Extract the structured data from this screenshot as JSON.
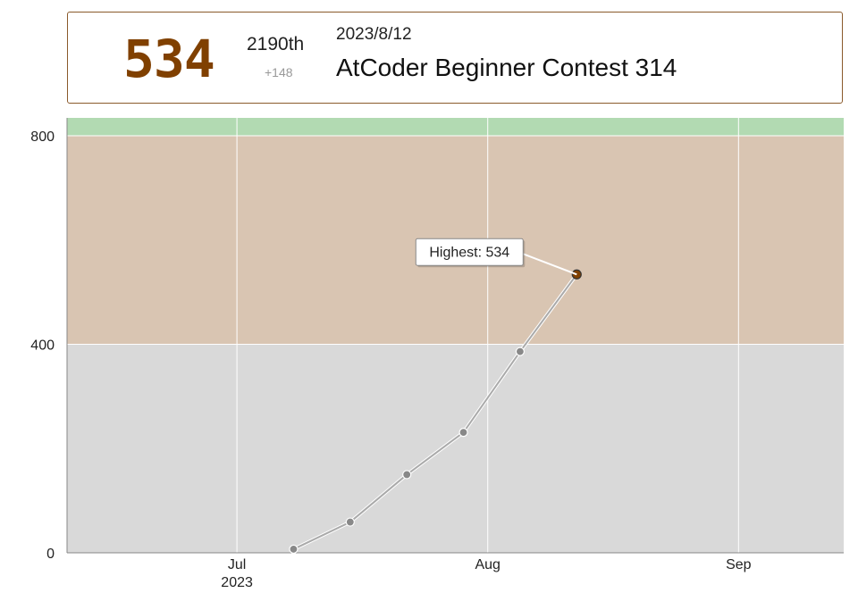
{
  "info": {
    "rating": "534",
    "rank": "2190th",
    "diff": "+148",
    "date": "2023/8/12",
    "contest": "AtCoder Beginner Contest 314"
  },
  "chart_data": {
    "type": "line",
    "series": [
      {
        "points": [
          {
            "date": "2023-07-08",
            "rating": 7
          },
          {
            "date": "2023-07-15",
            "rating": 59
          },
          {
            "date": "2023-07-22",
            "rating": 150
          },
          {
            "date": "2023-07-29",
            "rating": 231
          },
          {
            "date": "2023-08-05",
            "rating": 386
          },
          {
            "date": "2023-08-12",
            "rating": 534
          }
        ]
      }
    ],
    "ylim": [
      0,
      800
    ],
    "yticks": [
      0,
      400,
      800
    ],
    "xlim": [
      "2023-06-10",
      "2023-09-14"
    ],
    "xticks": [
      {
        "date": "2023-07-01",
        "label": "Jul",
        "sublabel": "2023"
      },
      {
        "date": "2023-08-01",
        "label": "Aug",
        "sublabel": ""
      },
      {
        "date": "2023-09-01",
        "label": "Sep",
        "sublabel": ""
      }
    ],
    "bands": [
      {
        "from": 0,
        "to": 400,
        "color": "#d9d9d9"
      },
      {
        "from": 400,
        "to": 800,
        "color": "#d9c5b2"
      },
      {
        "from": 800,
        "to": 1200,
        "color": "#b2dab2"
      }
    ],
    "annotation": {
      "label": "Highest: 534",
      "date": "2023-08-12",
      "rating": 534
    },
    "line_color": "#aaaaaa",
    "point_color": "#888888",
    "highlight_color": "#804000",
    "grid": true
  }
}
